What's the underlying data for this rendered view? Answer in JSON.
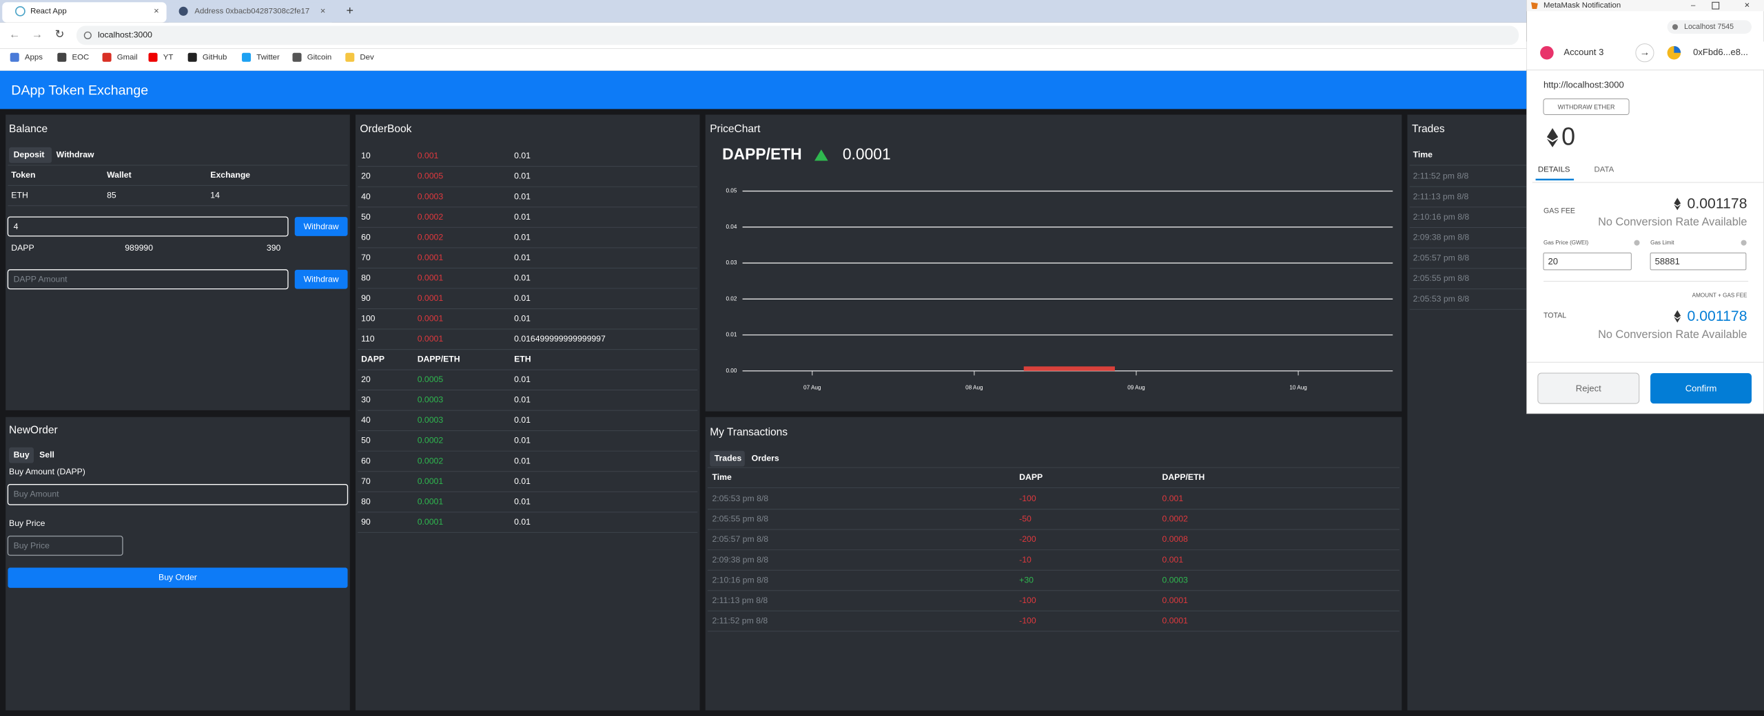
{
  "browser": {
    "tabs": [
      "React App",
      "Address 0xbacb04287308c2fe17"
    ],
    "url": "localhost:3000",
    "bookmarks": [
      "Apps",
      "EOC",
      "Gmail",
      "YT",
      "GitHub",
      "Twitter",
      "Gitcoin",
      "Dev"
    ]
  },
  "navbar": {
    "title": "DApp Token Exchange"
  },
  "balance": {
    "title": "Balance",
    "tabs": [
      "Deposit",
      "Withdraw"
    ],
    "columns": [
      "Token",
      "Wallet",
      "Exchange"
    ],
    "rows": [
      [
        "ETH",
        "85",
        "14"
      ],
      [
        "DAPP",
        "989990",
        "390"
      ]
    ],
    "inputs": [
      "4",
      "DAPP Amount"
    ],
    "buttons": [
      "Withdraw",
      "Withdraw"
    ]
  },
  "new_order": {
    "title": "NewOrder",
    "tabs": [
      "Buy",
      "Sell"
    ],
    "amount_label": "Buy Amount (DAPP)",
    "amount_placeholder": "Buy Amount",
    "price_label": "Buy Price",
    "price_placeholder": "Buy Price",
    "button": "Buy Order"
  },
  "order_book": {
    "title": "OrderBook",
    "sell_rows": [
      [
        "10",
        "0.001",
        "0.01"
      ],
      [
        "20",
        "0.0005",
        "0.01"
      ],
      [
        "40",
        "0.0003",
        "0.01"
      ],
      [
        "50",
        "0.0002",
        "0.01"
      ],
      [
        "60",
        "0.0002",
        "0.01"
      ],
      [
        "70",
        "0.0001",
        "0.01"
      ],
      [
        "80",
        "0.0001",
        "0.01"
      ],
      [
        "90",
        "0.0001",
        "0.01"
      ],
      [
        "100",
        "0.0001",
        "0.01"
      ],
      [
        "110",
        "0.0001",
        "0.016499999999999997"
      ]
    ],
    "columns": [
      "DAPP",
      "DAPP/ETH",
      "ETH"
    ],
    "buy_rows": [
      [
        "20",
        "0.0005",
        "0.01"
      ],
      [
        "30",
        "0.0003",
        "0.01"
      ],
      [
        "40",
        "0.0003",
        "0.01"
      ],
      [
        "50",
        "0.0002",
        "0.01"
      ],
      [
        "60",
        "0.0002",
        "0.01"
      ],
      [
        "70",
        "0.0001",
        "0.01"
      ],
      [
        "80",
        "0.0001",
        "0.01"
      ],
      [
        "90",
        "0.0001",
        "0.01"
      ]
    ]
  },
  "price_chart": {
    "title": "PriceChart",
    "pair": "DAPP/ETH",
    "price": "0.0001",
    "ylim": [
      0,
      0.05
    ],
    "yticks": [
      {
        "value": 0,
        "label": "0.00"
      },
      0.01,
      0.02,
      0.03,
      0.04,
      0.05
    ],
    "xticks": [
      "07 Aug",
      "08 Aug",
      "09 Aug",
      "10 Aug"
    ]
  },
  "my_transactions": {
    "title": "My Transactions",
    "tabs": [
      "Trades",
      "Orders"
    ],
    "columns": [
      "Time",
      "DAPP",
      "DAPP/ETH"
    ],
    "rows": [
      [
        "2:05:53 pm 8/8",
        "-100",
        "0.001"
      ],
      [
        "2:05:55 pm 8/8",
        "-50",
        "0.0002"
      ],
      [
        "2:05:57 pm 8/8",
        "-200",
        "0.0008"
      ],
      [
        "2:09:38 pm 8/8",
        "-10",
        "0.001"
      ],
      [
        "2:10:16 pm 8/8",
        "+30",
        "0.0003"
      ],
      [
        "2:11:13 pm 8/8",
        "-100",
        "0.0001"
      ],
      [
        "2:11:52 pm 8/8",
        "-100",
        "0.0001"
      ]
    ]
  },
  "trades": {
    "title": "Trades",
    "column": "Time",
    "rows": [
      "2:11:52 pm 8/8",
      "2:11:13 pm 8/8",
      "2:10:16 pm 8/8",
      "2:09:38 pm 8/8",
      "2:05:57 pm 8/8",
      "2:05:55 pm 8/8",
      "2:05:53 pm 8/8"
    ]
  },
  "metamask": {
    "window_title": "MetaMask Notification",
    "network": "Localhost 7545",
    "account": "Account 3",
    "recipient": "0xFbd6...e8...",
    "origin": "http://localhost:3000",
    "action": "WITHDRAW ETHER",
    "amount": "0",
    "tabs": [
      "DETAILS",
      "DATA"
    ],
    "gas_fee_label": "GAS FEE",
    "gas_fee": "0.001178",
    "no_rate": "No Conversion Rate Available",
    "gas_price_label": "Gas Price (GWEI)",
    "gas_limit_label": "Gas Limit",
    "gas_price": "20",
    "gas_limit": "58881",
    "total_caption": "AMOUNT + GAS FEE",
    "total_label": "TOTAL",
    "total": "0.001178",
    "total_no_rate": "No Conversion Rate Available",
    "reject": "Reject",
    "confirm": "Confirm"
  }
}
